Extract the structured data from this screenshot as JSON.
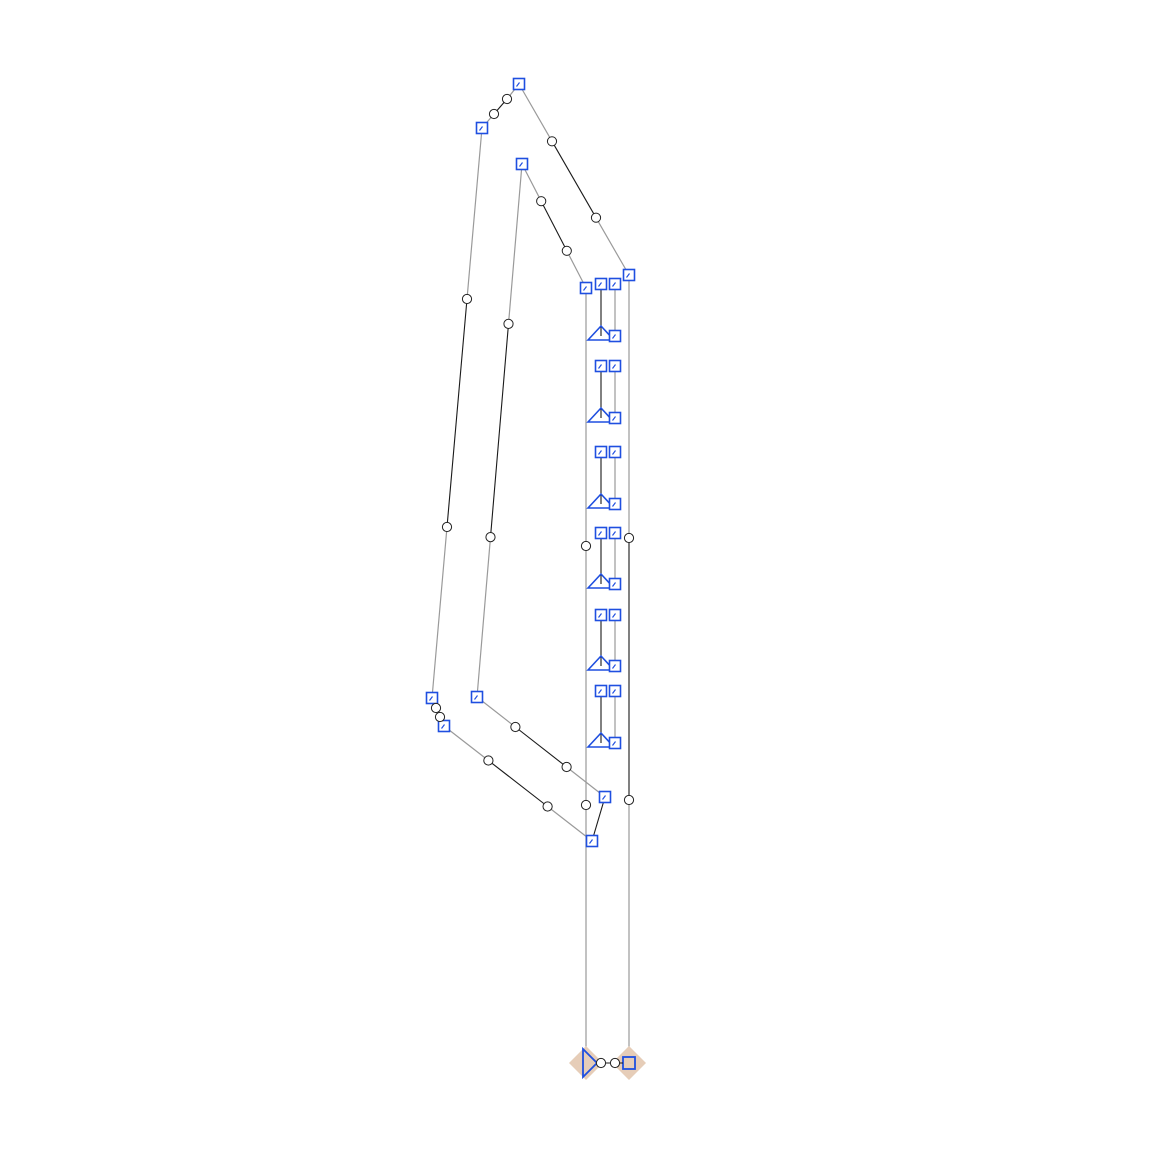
{
  "diagram": {
    "kind": "node-edge editor canvas",
    "text_labels": [],
    "colors": {
      "vertex_stroke": "#1f4fe0",
      "edge_grey": "#9a9a9a",
      "edge_dark": "#1a1a1a",
      "handle_fill": "#ffffff",
      "terminal_halo": "#e6cdb8"
    },
    "icons": {
      "vertex": "square-vertex-icon",
      "midpoint_handle": "circle-handle-icon",
      "stack_group": "triangle-bracket-icon",
      "start_terminal": "play-triangle-icon",
      "end_terminal": "stop-square-icon"
    },
    "counts": {
      "outer_loop_vertices": 5,
      "inner_loop_vertices": 5,
      "stacked_groups": 6,
      "terminals": 2
    }
  }
}
